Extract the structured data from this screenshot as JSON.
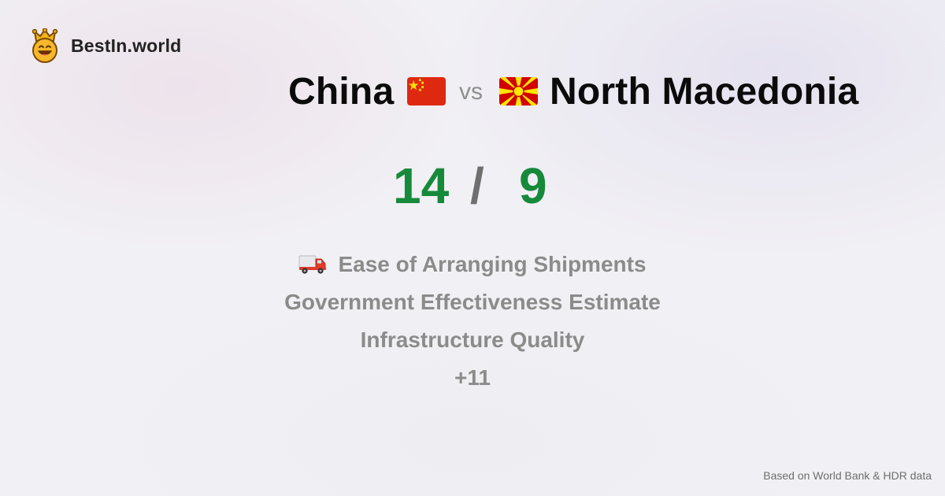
{
  "brand": {
    "name": "BestIn.world",
    "icon": "crowned-smiley-icon"
  },
  "comparison": {
    "country_a": {
      "name": "China",
      "flag": "china-flag-icon"
    },
    "vs_label": "vs",
    "country_b": {
      "name": "North Macedonia",
      "flag": "north-macedonia-flag-icon"
    }
  },
  "score": {
    "a": "14",
    "separator": "/",
    "b": "9"
  },
  "metrics": [
    {
      "label": "Ease of Arranging Shipments",
      "icon": "delivery-truck-icon"
    },
    {
      "label": "Government Effectiveness Estimate"
    },
    {
      "label": "Infrastructure Quality"
    },
    {
      "label": "+11"
    }
  ],
  "footer": {
    "source": "Based on World Bank & HDR data"
  },
  "colors": {
    "background": "#f1f0f4",
    "score_green": "#168a3b",
    "muted_text": "#8b8b8b",
    "title_text": "#0b0b0b",
    "china_red": "#de2910",
    "china_yellow": "#ffde00",
    "macedonia_red": "#d20000",
    "macedonia_yellow": "#ffe600"
  }
}
